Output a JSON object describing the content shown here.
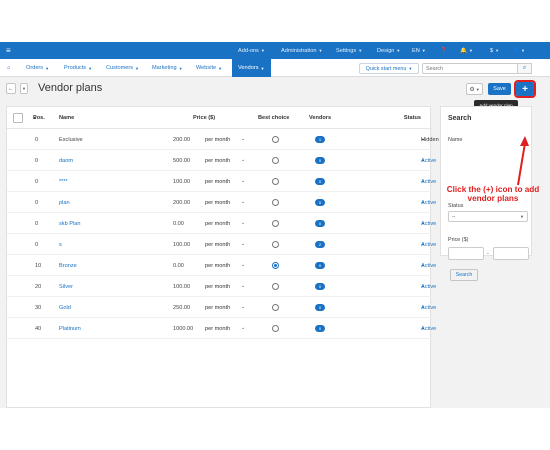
{
  "topbar": {
    "items": [
      "Add-ons",
      "Administration",
      "Settings",
      "Design",
      "EN",
      "$"
    ]
  },
  "nav": {
    "items": [
      "Orders",
      "Products",
      "Customers",
      "Marketing",
      "Website",
      "Vendors"
    ],
    "quick_start": "Quick start menu",
    "search_placeholder": "Search"
  },
  "header": {
    "title": "Vendor plans",
    "save_label": "Save",
    "add_label": "+",
    "tooltip": "Add vendor plan"
  },
  "table": {
    "columns": {
      "position": "Pos.",
      "name": "Name",
      "price": "Price ($)",
      "best_choice": "Best choice",
      "vendors": "Vendors",
      "status": "Status"
    },
    "rows": [
      {
        "pos": "0",
        "name": "Exclusive",
        "price": "200.00",
        "period": "per month",
        "best": false,
        "vendors": "1",
        "status": "Hidden"
      },
      {
        "pos": "0",
        "name": "daom",
        "price": "500.00",
        "period": "per month",
        "best": false,
        "vendors": "0",
        "status": "Active"
      },
      {
        "pos": "0",
        "name": "****",
        "price": "100.00",
        "period": "per month",
        "best": false,
        "vendors": "0",
        "status": "Active"
      },
      {
        "pos": "0",
        "name": "plan",
        "price": "200.00",
        "period": "per month",
        "best": false,
        "vendors": "0",
        "status": "Active"
      },
      {
        "pos": "0",
        "name": "skb Plan",
        "price": "0.00",
        "period": "per month",
        "best": false,
        "vendors": "0",
        "status": "Active"
      },
      {
        "pos": "0",
        "name": "s",
        "price": "100.00",
        "period": "per month",
        "best": false,
        "vendors": "2",
        "status": "Active"
      },
      {
        "pos": "10",
        "name": "Bronze",
        "price": "0.00",
        "period": "per month",
        "best": true,
        "vendors": "0",
        "status": "Active"
      },
      {
        "pos": "20",
        "name": "Silver",
        "price": "100.00",
        "period": "per month",
        "best": false,
        "vendors": "0",
        "status": "Active"
      },
      {
        "pos": "30",
        "name": "Gold",
        "price": "250.00",
        "period": "per month",
        "best": false,
        "vendors": "0",
        "status": "Active"
      },
      {
        "pos": "40",
        "name": "Platinum",
        "price": "1000.00",
        "period": "per month",
        "best": false,
        "vendors": "0",
        "status": "Active"
      }
    ]
  },
  "search_panel": {
    "title": "Search",
    "name_label": "Name",
    "status_label": "Status",
    "status_value": "--",
    "price_label": "Price ($)",
    "button": "Search"
  },
  "annotation": "Click the (+) icon to add vendor plans",
  "colors": {
    "primary": "#1a72c4",
    "annotation": "#e02020"
  }
}
